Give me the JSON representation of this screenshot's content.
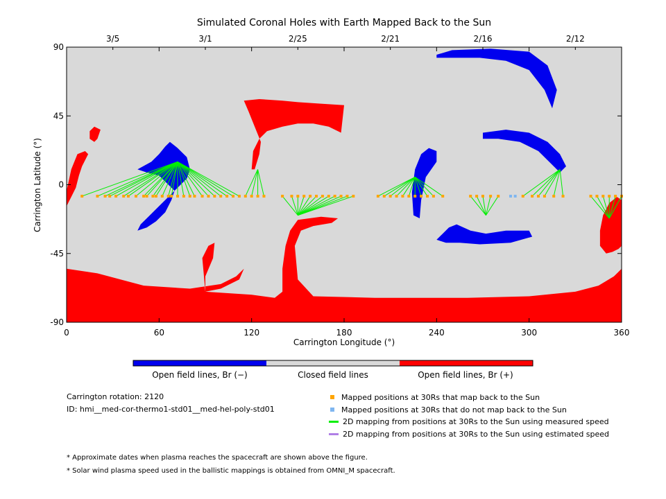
{
  "chart_data": {
    "type": "heatmap",
    "title": "Simulated Coronal Holes with Earth Mapped Back to the Sun",
    "xlabel": "Carrington Longitude (°)",
    "ylabel": "Carrington Latitude (°)",
    "xlim": [
      0,
      360
    ],
    "ylim": [
      -90,
      90
    ],
    "x_ticks": [
      "0",
      "60",
      "120",
      "180",
      "240",
      "300",
      "360"
    ],
    "x_tick_values": [
      0,
      60,
      120,
      180,
      240,
      300,
      360
    ],
    "y_ticks": [
      "-90",
      "-45",
      "0",
      "45",
      "90"
    ],
    "y_tick_values": [
      -90,
      -45,
      0,
      45,
      90
    ],
    "top_date_ticks": [
      {
        "label": "3/5",
        "lon": 30
      },
      {
        "label": "3/1",
        "lon": 90
      },
      {
        "label": "2/25",
        "lon": 150
      },
      {
        "label": "2/21",
        "lon": 210
      },
      {
        "label": "2/16",
        "lon": 270
      },
      {
        "label": "2/12",
        "lon": 330
      }
    ],
    "colorbar": [
      {
        "label": "Open field lines, Br (−)",
        "color": "#0000ee"
      },
      {
        "label": "Closed field lines",
        "color": "#d9d9d9"
      },
      {
        "label": "Open field lines, Br (+)",
        "color": "#ff0000"
      }
    ],
    "mapped_points": {
      "lat": -7.5,
      "lons": [
        10,
        20,
        25,
        28,
        32,
        37,
        40,
        45,
        50,
        52,
        56,
        58,
        62,
        66,
        68,
        72,
        76,
        80,
        83,
        88,
        92,
        96,
        100,
        104,
        108,
        112,
        116,
        120,
        124,
        128,
        140,
        146,
        150,
        154,
        158,
        162,
        166,
        170,
        174,
        178,
        182,
        186,
        202,
        206,
        210,
        214,
        218,
        222,
        226,
        230,
        234,
        238,
        244,
        262,
        266,
        270,
        275,
        280,
        296,
        302,
        306,
        310,
        316,
        322,
        340,
        344,
        348,
        352,
        356,
        360
      ],
      "non_mapping_lons": [
        288,
        291
      ]
    },
    "mapping_lines": [
      {
        "to": [
          72,
          15
        ],
        "from": [
          10,
          20,
          25,
          28,
          32,
          37,
          40,
          45,
          50,
          52,
          56,
          58,
          62,
          66,
          68,
          72,
          76,
          80,
          83,
          88,
          92,
          96,
          100,
          104,
          108,
          112
        ]
      },
      {
        "to": [
          124,
          10
        ],
        "from": [
          116,
          120,
          124,
          128
        ]
      },
      {
        "to": [
          150,
          -20
        ],
        "from": [
          140,
          146,
          150,
          154,
          158,
          162,
          166,
          170,
          174,
          178,
          182,
          186
        ]
      },
      {
        "to": [
          226,
          5
        ],
        "from": [
          202,
          206,
          210,
          214,
          218,
          222,
          226,
          230,
          234,
          238,
          244
        ]
      },
      {
        "to": [
          272,
          -20
        ],
        "from": [
          262,
          266,
          270,
          275,
          280
        ]
      },
      {
        "to": [
          320,
          10
        ],
        "from": [
          296,
          302,
          306,
          310,
          316,
          322
        ]
      },
      {
        "to": [
          352,
          -22
        ],
        "from": [
          340,
          344,
          348,
          352,
          356,
          360
        ]
      }
    ],
    "regions": {
      "negative": [
        [
          [
            240,
            85
          ],
          [
            250,
            88
          ],
          [
            275,
            89
          ],
          [
            300,
            87
          ],
          [
            312,
            78
          ],
          [
            318,
            62
          ],
          [
            315,
            50
          ],
          [
            310,
            62
          ],
          [
            300,
            75
          ],
          [
            285,
            81
          ],
          [
            268,
            83
          ],
          [
            250,
            83
          ],
          [
            240,
            83
          ]
        ],
        [
          [
            270,
            34
          ],
          [
            285,
            36
          ],
          [
            300,
            34
          ],
          [
            312,
            28
          ],
          [
            320,
            20
          ],
          [
            324,
            12
          ],
          [
            320,
            8
          ],
          [
            314,
            14
          ],
          [
            306,
            22
          ],
          [
            294,
            28
          ],
          [
            280,
            30
          ],
          [
            270,
            30
          ]
        ],
        [
          [
            235,
            24
          ],
          [
            230,
            20
          ],
          [
            226,
            10
          ],
          [
            224,
            -5
          ],
          [
            225,
            -20
          ],
          [
            229,
            -22
          ],
          [
            230,
            -10
          ],
          [
            233,
            5
          ],
          [
            240,
            15
          ],
          [
            240,
            22
          ]
        ],
        [
          [
            240,
            -36
          ],
          [
            244,
            -32
          ],
          [
            248,
            -28
          ],
          [
            253,
            -26
          ],
          [
            262,
            -30
          ],
          [
            272,
            -32
          ],
          [
            285,
            -30
          ],
          [
            300,
            -30
          ],
          [
            302,
            -34
          ],
          [
            288,
            -38
          ],
          [
            268,
            -39
          ],
          [
            255,
            -38
          ],
          [
            246,
            -38
          ]
        ],
        [
          [
            46,
            10
          ],
          [
            55,
            15
          ],
          [
            60,
            20
          ],
          [
            64,
            25
          ],
          [
            67,
            28
          ],
          [
            72,
            24
          ],
          [
            78,
            18
          ],
          [
            80,
            10
          ],
          [
            78,
            4
          ],
          [
            74,
            0
          ],
          [
            70,
            -4
          ],
          [
            66,
            -8
          ],
          [
            60,
            -14
          ],
          [
            54,
            -20
          ],
          [
            48,
            -26
          ],
          [
            46,
            -30
          ],
          [
            52,
            -28
          ],
          [
            58,
            -24
          ],
          [
            64,
            -18
          ],
          [
            68,
            -10
          ],
          [
            70,
            -4
          ],
          [
            66,
            0
          ],
          [
            60,
            6
          ],
          [
            52,
            8
          ]
        ]
      ],
      "positive": [
        [
          [
            0,
            -55
          ],
          [
            20,
            -58
          ],
          [
            50,
            -66
          ],
          [
            80,
            -68
          ],
          [
            100,
            -65
          ],
          [
            110,
            -60
          ],
          [
            115,
            -55
          ],
          [
            112,
            -62
          ],
          [
            100,
            -68
          ],
          [
            90,
            -70
          ],
          [
            90,
            -60
          ],
          [
            95,
            -48
          ],
          [
            96,
            -38
          ],
          [
            92,
            -40
          ],
          [
            88,
            -48
          ],
          [
            90,
            -70
          ],
          [
            120,
            -72
          ],
          [
            135,
            -74
          ],
          [
            140,
            -70
          ],
          [
            140,
            -55
          ],
          [
            142,
            -40
          ],
          [
            145,
            -30
          ],
          [
            150,
            -23
          ],
          [
            165,
            -21
          ],
          [
            176,
            -22
          ],
          [
            172,
            -25
          ],
          [
            160,
            -27
          ],
          [
            152,
            -30
          ],
          [
            148,
            -40
          ],
          [
            150,
            -62
          ],
          [
            160,
            -73
          ],
          [
            200,
            -74
          ],
          [
            260,
            -74
          ],
          [
            300,
            -73
          ],
          [
            330,
            -70
          ],
          [
            345,
            -66
          ],
          [
            355,
            -60
          ],
          [
            360,
            -55
          ],
          [
            360,
            -90
          ],
          [
            0,
            -90
          ]
        ],
        [
          [
            350,
            -45
          ],
          [
            354,
            -44
          ],
          [
            358,
            -42
          ],
          [
            360,
            -40
          ],
          [
            360,
            -10
          ],
          [
            357,
            -8
          ],
          [
            352,
            -12
          ],
          [
            348,
            -20
          ],
          [
            346,
            -30
          ],
          [
            346,
            -40
          ]
        ],
        [
          [
            0,
            -14
          ],
          [
            0,
            -4
          ],
          [
            3,
            10
          ],
          [
            7,
            20
          ],
          [
            12,
            22
          ],
          [
            14,
            20
          ],
          [
            10,
            12
          ],
          [
            8,
            6
          ],
          [
            6,
            -2
          ],
          [
            3,
            -8
          ]
        ],
        [
          [
            15,
            35
          ],
          [
            18,
            38
          ],
          [
            22,
            36
          ],
          [
            20,
            30
          ],
          [
            18,
            28
          ],
          [
            15,
            30
          ]
        ],
        [
          [
            115,
            55
          ],
          [
            125,
            56
          ],
          [
            140,
            55
          ],
          [
            150,
            54
          ],
          [
            165,
            53
          ],
          [
            180,
            52
          ],
          [
            178,
            34
          ],
          [
            170,
            38
          ],
          [
            160,
            40
          ],
          [
            150,
            40
          ],
          [
            140,
            38
          ],
          [
            130,
            35
          ],
          [
            125,
            30
          ],
          [
            121,
            22
          ],
          [
            120,
            10
          ],
          [
            122,
            10
          ],
          [
            125,
            20
          ],
          [
            126,
            28
          ],
          [
            122,
            38
          ],
          [
            118,
            48
          ]
        ]
      ]
    }
  },
  "colorbar_labels": {
    "neg": "Open field lines, Br (−)",
    "closed": "Closed field lines",
    "pos": "Open field lines, Br (+)"
  },
  "info": {
    "rotation": "Carrington rotation: 2120",
    "id": "ID: hmi__med-cor-thermo1-std01__med-hel-poly-std01"
  },
  "legend": {
    "items": [
      {
        "label": "Mapped positions at 30Rs that map back to the Sun",
        "color": "#ffa500",
        "kind": "square"
      },
      {
        "label": "Mapped positions at 30Rs that do not map back to the Sun",
        "color": "#7fb6f0",
        "kind": "square"
      },
      {
        "label": "2D mapping from positions at 30Rs to the Sun using measured speed",
        "color": "#00ee00",
        "kind": "line"
      },
      {
        "label": "2D mapping from positions at 30Rs to the Sun using estimated speed",
        "color": "#b07fe6",
        "kind": "line"
      }
    ]
  },
  "footnotes": {
    "note1": "* Approximate dates when plasma reaches the spacecraft are shown above the figure.",
    "note2": "* Solar wind plasma speed used in the ballistic mappings is obtained from OMNI_M spacecraft."
  },
  "colors": {
    "negative": "#0000ee",
    "positive": "#ff0000",
    "closed": "#d9d9d9",
    "mapped": "#ffa500",
    "nonmapped": "#7fb6f0",
    "measured_line": "#00ee00"
  }
}
